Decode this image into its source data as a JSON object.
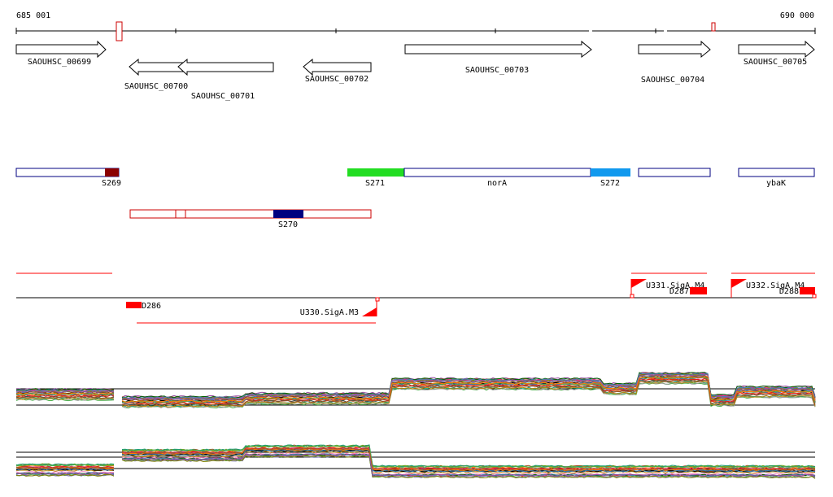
{
  "ruler": {
    "start_label": "685 001",
    "end_label": "690 000"
  },
  "genes": [
    {
      "label": "SAOUHSC_00699",
      "strand": "+"
    },
    {
      "label": "SAOUHSC_00700",
      "strand": "-"
    },
    {
      "label": "SAOUHSC_00701",
      "strand": "-"
    },
    {
      "label": "SAOUHSC_00702",
      "strand": "-"
    },
    {
      "label": "SAOUHSC_00703",
      "strand": "+"
    },
    {
      "label": "SAOUHSC_00704",
      "strand": "+"
    },
    {
      "label": "SAOUHSC_00705",
      "strand": "+"
    }
  ],
  "segments": {
    "forward": [
      {
        "label": "S269",
        "color": "#8b0000"
      },
      {
        "label": "S271",
        "color": "#22dd22"
      },
      {
        "label": "norA",
        "color": "#ffffff"
      },
      {
        "label": "S272",
        "color": "#1199ee"
      },
      {
        "label": "ybaK",
        "color": "#ffffff"
      }
    ],
    "reverse": [
      {
        "label": "S270",
        "color": "#000080"
      }
    ]
  },
  "features": [
    {
      "label": "D286"
    },
    {
      "label": "U330.SigA.M3"
    },
    {
      "label": "U331.SigA.M4"
    },
    {
      "label": "D287"
    },
    {
      "label": "U332.SigA.M4"
    },
    {
      "label": "D288"
    }
  ],
  "colors": {
    "gene_outline": "#000000",
    "forward_segment_outline": "#000080",
    "reverse_segment_outline": "#cc0000",
    "feature_red": "#ff0000"
  }
}
